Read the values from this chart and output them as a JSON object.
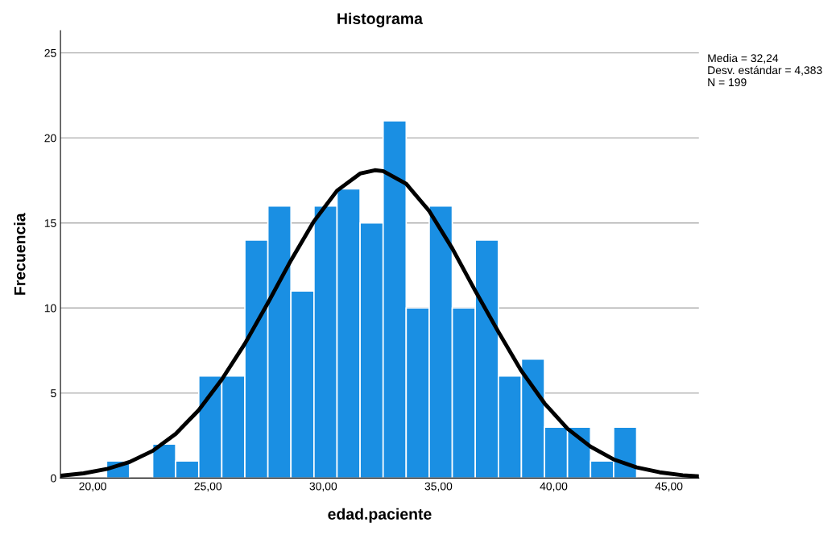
{
  "chart_data": {
    "type": "histogram",
    "title": "Histograma",
    "xlabel": "edad.paciente",
    "ylabel": "Frecuencia",
    "series": [
      {
        "color": "#1a8fe3",
        "bins": [
          20.6,
          21.6,
          22.6,
          23.6,
          24.6,
          25.6,
          26.6,
          27.6,
          28.6,
          29.6,
          30.6,
          31.6,
          32.6,
          33.6,
          34.6,
          35.6,
          36.6,
          37.6,
          38.6,
          39.6,
          40.6,
          41.6,
          42.6,
          43.6
        ],
        "values": [
          1,
          0,
          2,
          1,
          6,
          6,
          14,
          16,
          11,
          16,
          17,
          15,
          21,
          10,
          16,
          10,
          14,
          6,
          7,
          3,
          3,
          1,
          3
        ]
      },
      {
        "type": "line",
        "color": "#000000",
        "x": [
          18.6,
          19.6,
          20.6,
          21.6,
          22.6,
          23.6,
          24.6,
          25.6,
          26.6,
          27.6,
          28.6,
          29.6,
          30.6,
          31.6,
          32.24,
          32.6,
          33.6,
          34.6,
          35.6,
          36.6,
          37.6,
          38.6,
          39.6,
          40.6,
          41.6,
          42.6,
          43.6,
          44.6,
          45.6,
          46.3
        ],
        "values": [
          0.14,
          0.28,
          0.53,
          0.95,
          1.6,
          2.6,
          4.0,
          5.8,
          7.9,
          10.3,
          12.8,
          15.1,
          16.9,
          17.9,
          18.1,
          18.05,
          17.3,
          15.7,
          13.5,
          11.0,
          8.6,
          6.3,
          4.4,
          2.9,
          1.85,
          1.1,
          0.63,
          0.34,
          0.17,
          0.1
        ]
      }
    ],
    "xlim": [
      18.6,
      46.3
    ],
    "ylim": [
      0,
      26.3
    ],
    "xticks": [
      {
        "value": 20,
        "label": "20,00"
      },
      {
        "value": 25,
        "label": "25,00"
      },
      {
        "value": 30,
        "label": "30,00"
      },
      {
        "value": 35,
        "label": "35,00"
      },
      {
        "value": 40,
        "label": "40,00"
      },
      {
        "value": 45,
        "label": "45,00"
      }
    ],
    "yticks": [
      0,
      5,
      10,
      15,
      20,
      25
    ],
    "grid": "y",
    "legend": false,
    "annotations": [
      "Media = 32,24\nDesv. estándar = 4,383\nN = 199"
    ]
  }
}
